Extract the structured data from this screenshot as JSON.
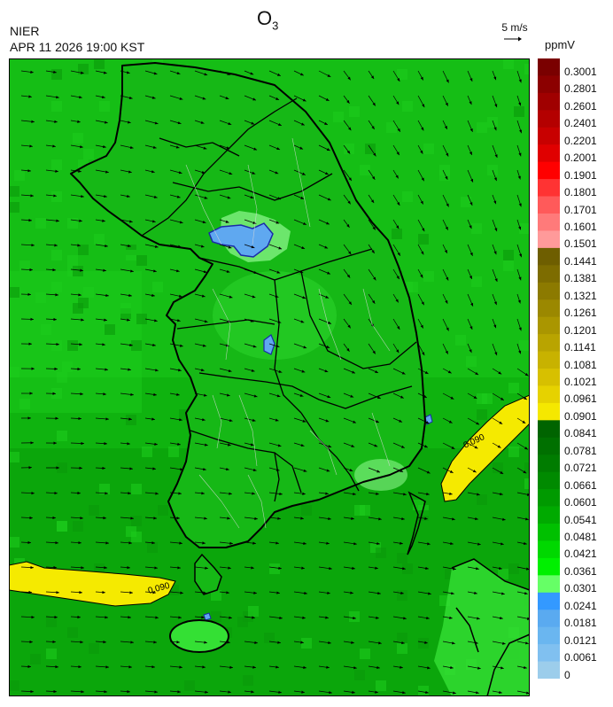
{
  "header": {
    "title_main": "O",
    "title_sub": "3",
    "source": "NIER",
    "datetime": "APR 11 2026 19:00 KST",
    "wind_reference": "5 m/s",
    "unit": "ppmV"
  },
  "map": {
    "region": "South Korea",
    "contour_label": "0.090",
    "colors": {
      "sea_main": "#0fb30f",
      "sea_dark": "#0a9a0a",
      "sea_light": "#1ccc1c",
      "land": "#16b816",
      "land_light": "#34e034",
      "pale": "#8af58a",
      "blue": "#5fa8f0",
      "blue_dark": "#3f8fe8",
      "yellow": "#f5ea00",
      "border": "#000000",
      "district_line": "#d8d8d8"
    }
  },
  "colorbar": {
    "labels": [
      "0.3001",
      "0.2801",
      "0.2601",
      "0.2401",
      "0.2201",
      "0.2001",
      "0.1901",
      "0.1801",
      "0.1701",
      "0.1601",
      "0.1501",
      "0.1441",
      "0.1381",
      "0.1321",
      "0.1261",
      "0.1201",
      "0.1141",
      "0.1081",
      "0.1021",
      "0.0961",
      "0.0901",
      "0.0841",
      "0.0781",
      "0.0721",
      "0.0661",
      "0.0601",
      "0.0541",
      "0.0481",
      "0.0421",
      "0.0361",
      "0.0301",
      "0.0241",
      "0.0181",
      "0.0121",
      "0.0061",
      "0"
    ],
    "colors": [
      "#7a0000",
      "#8c0000",
      "#a00000",
      "#b40000",
      "#c80000",
      "#e00000",
      "#ff0000",
      "#ff3333",
      "#ff5a5a",
      "#ff7a7a",
      "#ff9a9a",
      "#6e5e00",
      "#7d6c00",
      "#8c7a00",
      "#9b8800",
      "#aa9600",
      "#b9a400",
      "#c8b200",
      "#d7c000",
      "#e6d200",
      "#f5e800",
      "#006400",
      "#007000",
      "#007c00",
      "#008a00",
      "#009a00",
      "#00aa00",
      "#00c000",
      "#00d800",
      "#00f000",
      "#66ff66",
      "#3399ff",
      "#5aaaf0",
      "#6ab6f0",
      "#80c0f0",
      "#9ccdeb"
    ]
  }
}
